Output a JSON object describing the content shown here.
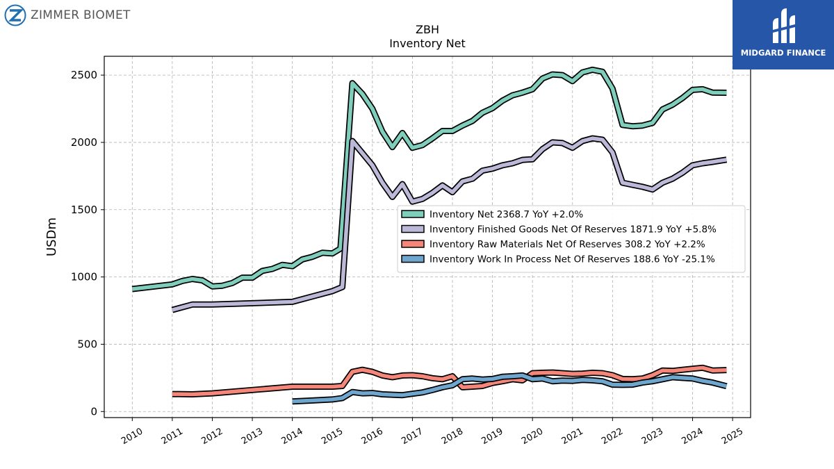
{
  "branding": {
    "company_name": "ZIMMER BIOMET",
    "partner_name": "MIDGARD FINANCE",
    "partner_color": "#2556a8",
    "logo_icon": "zimmer-biomet-z-logo",
    "partner_icon": "midgard-finance-logo"
  },
  "chart_data": {
    "type": "line",
    "title": "ZBH",
    "subtitle": "Inventory Net",
    "ylabel": "USDm",
    "xlabel": "",
    "xlim": [
      2009.3,
      2025.45
    ],
    "ylim": [
      -45,
      2640
    ],
    "x_ticks": [
      "2010",
      "2011",
      "2012",
      "2013",
      "2014",
      "2015",
      "2016",
      "2017",
      "2018",
      "2019",
      "2020",
      "2021",
      "2022",
      "2023",
      "2024",
      "2025"
    ],
    "y_ticks": [
      0,
      500,
      1000,
      1500,
      2000,
      2500
    ],
    "grid": true,
    "legend_position": "center-right",
    "series": [
      {
        "name": "Inventory Net",
        "legend": "Inventory Net  2368.7 YoY +2.0%",
        "color": "#7fcdbb",
        "points": [
          [
            2010.0,
            910
          ],
          [
            2011.0,
            945
          ],
          [
            2011.25,
            970
          ],
          [
            2011.5,
            985
          ],
          [
            2011.75,
            975
          ],
          [
            2012.0,
            930
          ],
          [
            2012.25,
            935
          ],
          [
            2012.5,
            955
          ],
          [
            2012.75,
            995
          ],
          [
            2013.0,
            995
          ],
          [
            2013.25,
            1045
          ],
          [
            2013.5,
            1060
          ],
          [
            2013.75,
            1090
          ],
          [
            2014.0,
            1080
          ],
          [
            2014.25,
            1130
          ],
          [
            2014.5,
            1150
          ],
          [
            2014.75,
            1180
          ],
          [
            2015.0,
            1175
          ],
          [
            2015.2,
            1210
          ],
          [
            2015.5,
            2440
          ],
          [
            2015.75,
            2360
          ],
          [
            2016.0,
            2250
          ],
          [
            2016.25,
            2080
          ],
          [
            2016.5,
            1965
          ],
          [
            2016.75,
            2070
          ],
          [
            2017.0,
            1960
          ],
          [
            2017.25,
            1980
          ],
          [
            2017.5,
            2030
          ],
          [
            2017.75,
            2085
          ],
          [
            2018.0,
            2085
          ],
          [
            2018.25,
            2125
          ],
          [
            2018.5,
            2160
          ],
          [
            2018.75,
            2220
          ],
          [
            2019.0,
            2255
          ],
          [
            2019.25,
            2310
          ],
          [
            2019.5,
            2350
          ],
          [
            2019.75,
            2370
          ],
          [
            2020.0,
            2395
          ],
          [
            2020.25,
            2475
          ],
          [
            2020.5,
            2505
          ],
          [
            2020.75,
            2500
          ],
          [
            2021.0,
            2455
          ],
          [
            2021.25,
            2520
          ],
          [
            2021.5,
            2540
          ],
          [
            2021.75,
            2525
          ],
          [
            2022.0,
            2400
          ],
          [
            2022.25,
            2130
          ],
          [
            2022.5,
            2120
          ],
          [
            2022.75,
            2125
          ],
          [
            2023.0,
            2145
          ],
          [
            2023.25,
            2245
          ],
          [
            2023.5,
            2280
          ],
          [
            2023.75,
            2330
          ],
          [
            2024.0,
            2390
          ],
          [
            2024.25,
            2395
          ],
          [
            2024.5,
            2370
          ],
          [
            2024.85,
            2368.7
          ]
        ]
      },
      {
        "name": "Inventory Finished Goods Net Of Reserves",
        "legend": "Inventory Finished Goods Net Of Reserves  1871.9 YoY +5.8%",
        "color": "#bcb9d8",
        "points": [
          [
            2011.0,
            755
          ],
          [
            2011.5,
            795
          ],
          [
            2012.0,
            795
          ],
          [
            2014.0,
            815
          ],
          [
            2014.5,
            855
          ],
          [
            2015.0,
            895
          ],
          [
            2015.25,
            925
          ],
          [
            2015.5,
            2010
          ],
          [
            2015.75,
            1920
          ],
          [
            2016.0,
            1830
          ],
          [
            2016.25,
            1700
          ],
          [
            2016.5,
            1595
          ],
          [
            2016.75,
            1690
          ],
          [
            2017.0,
            1560
          ],
          [
            2017.25,
            1580
          ],
          [
            2017.5,
            1625
          ],
          [
            2017.75,
            1680
          ],
          [
            2018.0,
            1630
          ],
          [
            2018.25,
            1710
          ],
          [
            2018.5,
            1730
          ],
          [
            2018.75,
            1790
          ],
          [
            2019.0,
            1805
          ],
          [
            2019.25,
            1830
          ],
          [
            2019.5,
            1845
          ],
          [
            2019.75,
            1870
          ],
          [
            2020.0,
            1875
          ],
          [
            2020.25,
            1950
          ],
          [
            2020.5,
            2000
          ],
          [
            2020.75,
            1995
          ],
          [
            2021.0,
            1960
          ],
          [
            2021.25,
            2010
          ],
          [
            2021.5,
            2030
          ],
          [
            2021.75,
            2020
          ],
          [
            2022.0,
            1925
          ],
          [
            2022.25,
            1700
          ],
          [
            2022.5,
            1685
          ],
          [
            2022.75,
            1670
          ],
          [
            2023.0,
            1650
          ],
          [
            2023.25,
            1700
          ],
          [
            2023.5,
            1730
          ],
          [
            2023.75,
            1775
          ],
          [
            2024.0,
            1830
          ],
          [
            2024.25,
            1845
          ],
          [
            2024.5,
            1855
          ],
          [
            2024.85,
            1871.9
          ]
        ]
      },
      {
        "name": "Inventory Raw Materials Net Of Reserves",
        "legend": "Inventory Raw Materials Net Of Reserves  308.2 YoY +2.2%",
        "color": "#f4867a",
        "points": [
          [
            2011.0,
            130
          ],
          [
            2011.5,
            128
          ],
          [
            2012.0,
            135
          ],
          [
            2013.0,
            160
          ],
          [
            2014.0,
            185
          ],
          [
            2015.0,
            185
          ],
          [
            2015.25,
            190
          ],
          [
            2015.5,
            295
          ],
          [
            2015.75,
            310
          ],
          [
            2016.0,
            295
          ],
          [
            2016.25,
            268
          ],
          [
            2016.5,
            255
          ],
          [
            2016.75,
            268
          ],
          [
            2017.0,
            270
          ],
          [
            2017.25,
            262
          ],
          [
            2017.5,
            248
          ],
          [
            2017.75,
            240
          ],
          [
            2018.0,
            262
          ],
          [
            2018.25,
            180
          ],
          [
            2018.5,
            185
          ],
          [
            2018.75,
            190
          ],
          [
            2019.0,
            212
          ],
          [
            2019.25,
            225
          ],
          [
            2019.5,
            240
          ],
          [
            2019.75,
            232
          ],
          [
            2020.0,
            285
          ],
          [
            2020.25,
            288
          ],
          [
            2020.5,
            290
          ],
          [
            2020.75,
            285
          ],
          [
            2021.0,
            280
          ],
          [
            2021.25,
            282
          ],
          [
            2021.5,
            288
          ],
          [
            2021.75,
            285
          ],
          [
            2022.0,
            270
          ],
          [
            2022.25,
            242
          ],
          [
            2022.5,
            240
          ],
          [
            2022.75,
            245
          ],
          [
            2023.0,
            270
          ],
          [
            2023.25,
            305
          ],
          [
            2023.5,
            302
          ],
          [
            2023.75,
            310
          ],
          [
            2024.0,
            318
          ],
          [
            2024.25,
            325
          ],
          [
            2024.5,
            305
          ],
          [
            2024.85,
            308.2
          ]
        ]
      },
      {
        "name": "Inventory Work In Process Net Of Reserves",
        "legend": "Inventory Work In Process Net Of Reserves  188.6 YoY -25.1%",
        "color": "#6ea6cd",
        "points": [
          [
            2014.0,
            75
          ],
          [
            2014.5,
            82
          ],
          [
            2015.0,
            90
          ],
          [
            2015.25,
            100
          ],
          [
            2015.5,
            145
          ],
          [
            2015.75,
            135
          ],
          [
            2016.0,
            138
          ],
          [
            2016.25,
            128
          ],
          [
            2016.5,
            125
          ],
          [
            2016.75,
            122
          ],
          [
            2017.0,
            132
          ],
          [
            2017.25,
            142
          ],
          [
            2017.5,
            160
          ],
          [
            2017.75,
            180
          ],
          [
            2018.0,
            195
          ],
          [
            2018.25,
            240
          ],
          [
            2018.5,
            245
          ],
          [
            2018.75,
            238
          ],
          [
            2019.0,
            242
          ],
          [
            2019.25,
            258
          ],
          [
            2019.5,
            262
          ],
          [
            2019.75,
            268
          ],
          [
            2020.0,
            240
          ],
          [
            2020.25,
            245
          ],
          [
            2020.5,
            225
          ],
          [
            2020.75,
            230
          ],
          [
            2021.0,
            228
          ],
          [
            2021.25,
            235
          ],
          [
            2021.5,
            232
          ],
          [
            2021.75,
            225
          ],
          [
            2022.0,
            200
          ],
          [
            2022.25,
            198
          ],
          [
            2022.5,
            200
          ],
          [
            2022.75,
            215
          ],
          [
            2023.0,
            225
          ],
          [
            2023.25,
            240
          ],
          [
            2023.5,
            255
          ],
          [
            2023.75,
            250
          ],
          [
            2024.0,
            245
          ],
          [
            2024.25,
            228
          ],
          [
            2024.5,
            215
          ],
          [
            2024.85,
            188.6
          ]
        ]
      }
    ]
  }
}
